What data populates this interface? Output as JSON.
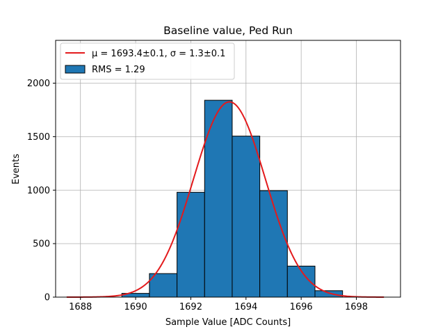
{
  "chart_data": {
    "type": "bar",
    "title": "Baseline value, Ped Run",
    "xlabel": "Sample Value [ADC Counts]",
    "ylabel": "Events",
    "xlim": [
      1687.1,
      1699.6
    ],
    "ylim": [
      0,
      2400
    ],
    "grid": true,
    "x_ticks": [
      1688,
      1690,
      1692,
      1694,
      1696,
      1698
    ],
    "y_ticks": [
      0,
      500,
      1000,
      1500,
      2000
    ],
    "legend_position": "top-left",
    "histogram": {
      "name": "RMS = 1.29",
      "color": "#1f77b4",
      "bin_edges": [
        1689.5,
        1690.5,
        1691.5,
        1692.5,
        1693.5,
        1694.5,
        1695.5,
        1696.5,
        1697.5
      ],
      "counts": [
        35,
        220,
        980,
        1840,
        1505,
        995,
        290,
        60
      ]
    },
    "fit": {
      "name_mu_part": "μ = 1693.4±0.1",
      "name_sigma_part": "σ = 1.3±0.1",
      "color": "#e31a1c",
      "type": "gaussian",
      "mu": 1693.4,
      "sigma": 1.3,
      "amplitude": 1825,
      "x_range": [
        1687.5,
        1699.0
      ]
    }
  }
}
